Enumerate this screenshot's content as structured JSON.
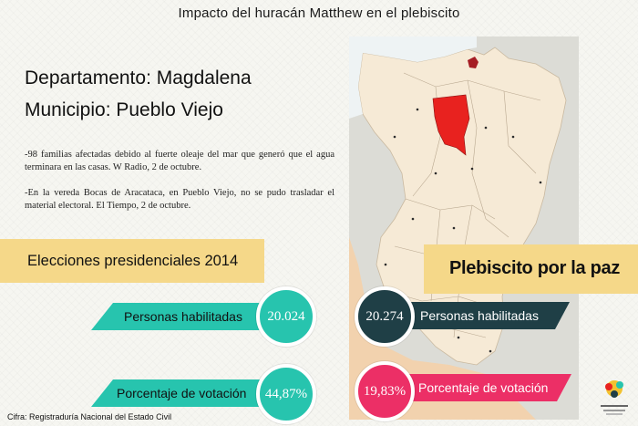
{
  "title": "Impacto del huracán Matthew en el plebiscito",
  "header": {
    "department": "Departamento: Magdalena",
    "municipality": "Municipio: Pueblo Viejo"
  },
  "notes": [
    "-98 familias afectadas debido al fuerte oleaje del mar que generó que el agua terminara en las casas. W Radio, 2 de octubre.",
    "-En la vereda Bocas de Aracataca, en Pueblo Viejo, no se pudo trasladar el material electoral. El Tiempo, 2 de octubre."
  ],
  "elections_2014": {
    "heading": "Elecciones presidenciales 2014",
    "eligible_label": "Personas habilitadas",
    "eligible_value": "20.024",
    "turnout_label": "Porcentaje de votación",
    "turnout_value": "44,87%"
  },
  "plebiscite": {
    "heading": "Plebiscito por la paz",
    "eligible_label": "Personas habilitadas",
    "eligible_value": "20.274",
    "turnout_label": "Porcentaje de votación",
    "turnout_value": "19,83%"
  },
  "source": "Cifra: Registraduría Nacional del Estado Civil",
  "colors": {
    "teal": "#27c4ae",
    "dark": "#1f3f46",
    "pink": "#ec2f66",
    "banner": "#f5d889",
    "highlight": "#e8221f",
    "map_land": "#f6ead6",
    "map_neighbor": "#f2d2ae"
  },
  "icons": {
    "map": "magdalena-department-map",
    "logo": "organization-logo"
  }
}
